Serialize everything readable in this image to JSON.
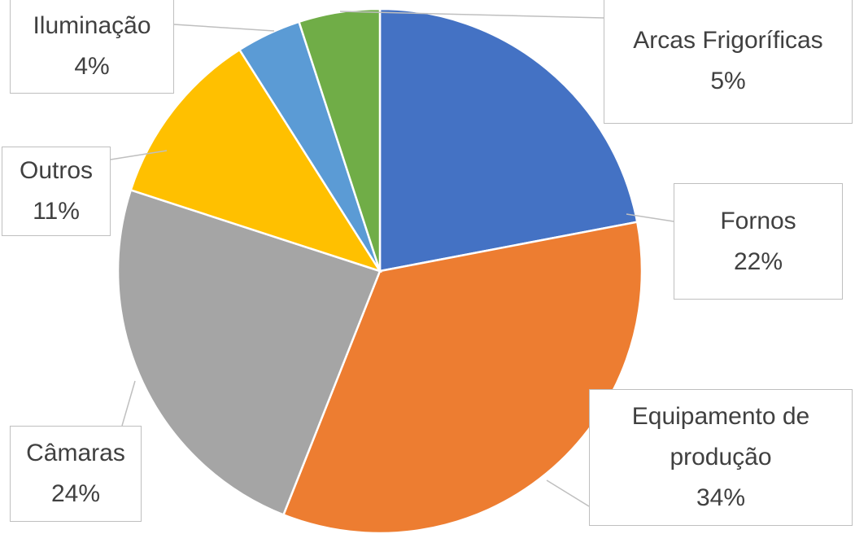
{
  "chart_data": {
    "type": "pie",
    "categories": [
      "Fornos",
      "Equipamento de produção",
      "Câmaras",
      "Outros",
      "Iluminação",
      "Arcas Frigoríficas"
    ],
    "values": [
      22,
      34,
      24,
      11,
      4,
      5
    ],
    "value_labels": [
      "22%",
      "34%",
      "24%",
      "11%",
      "4%",
      "5%"
    ],
    "colors": [
      "#4472c4",
      "#ed7d31",
      "#a5a5a5",
      "#ffc000",
      "#5b9bd5",
      "#70ad47"
    ]
  }
}
